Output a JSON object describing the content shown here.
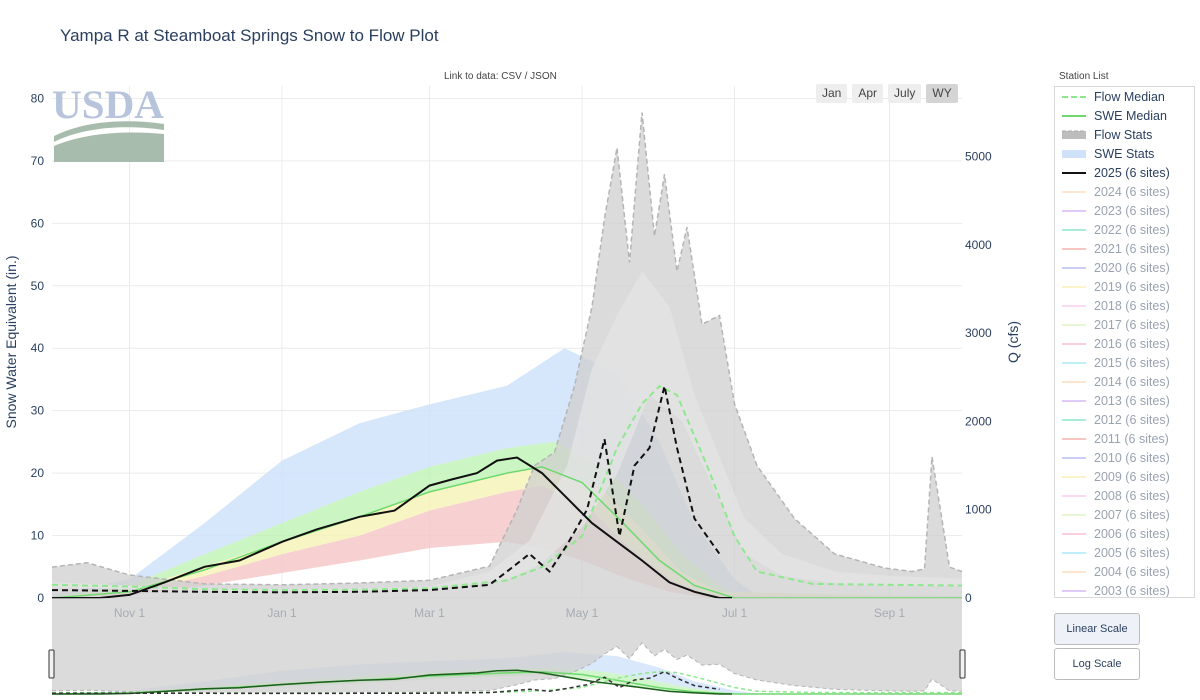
{
  "page": {
    "title": "Yampa R at Steamboat Springs Snow to Flow Plot",
    "data_link": "Link to data: CSV / JSON",
    "range_buttons": [
      "Jan",
      "Apr",
      "July",
      "WY"
    ],
    "active_range": "WY",
    "station_list_title": "Station List",
    "scale_buttons": [
      "Linear Scale",
      "Log Scale"
    ],
    "active_scale": "Linear Scale"
  },
  "colors": {
    "swe_stats_outer": "#cfe2fa",
    "swe_stats_green": "#bff2b5",
    "swe_stats_yellow": "#f6f3b8",
    "swe_stats_red": "#f6c9ca",
    "flow_stats_outer": "#cfcfcf",
    "flow_stats_inner": "#e6e6e6",
    "swe_median": "#6fd96f",
    "flow_median": "#8ee88e",
    "current_year": "#111111"
  },
  "legend": [
    {
      "label": "Flow Median",
      "kind": "dash",
      "color": "#8ee88e",
      "active": true
    },
    {
      "label": "SWE Median",
      "kind": "line",
      "color": "#6fd96f",
      "active": true
    },
    {
      "label": "Flow Stats",
      "kind": "dashfill",
      "color": "#bdbdbd",
      "active": true
    },
    {
      "label": "SWE Stats",
      "kind": "fill",
      "color": "#cfe2fa",
      "active": true
    },
    {
      "label": "2025 (6 sites)",
      "kind": "line",
      "color": "#111111",
      "active": true
    },
    {
      "label": "2024 (6 sites)",
      "kind": "line",
      "color": "#f5c28e",
      "active": false
    },
    {
      "label": "2023 (6 sites)",
      "kind": "line",
      "color": "#b47ef0",
      "active": false
    },
    {
      "label": "2022 (6 sites)",
      "kind": "line",
      "color": "#2ecf9a",
      "active": false
    },
    {
      "label": "2021 (6 sites)",
      "kind": "line",
      "color": "#f0776a",
      "active": false
    },
    {
      "label": "2020 (6 sites)",
      "kind": "line",
      "color": "#7f86e6",
      "active": false
    },
    {
      "label": "2019 (6 sites)",
      "kind": "line",
      "color": "#f7e27a",
      "active": false
    },
    {
      "label": "2018 (6 sites)",
      "kind": "line",
      "color": "#f2a6e8",
      "active": false
    },
    {
      "label": "2017 (6 sites)",
      "kind": "line",
      "color": "#c8ec9a",
      "active": false
    },
    {
      "label": "2016 (6 sites)",
      "kind": "line",
      "color": "#f28aa8",
      "active": false
    },
    {
      "label": "2015 (6 sites)",
      "kind": "line",
      "color": "#62dcf0",
      "active": false
    },
    {
      "label": "2014 (6 sites)",
      "kind": "line",
      "color": "#f5c28e",
      "active": false
    },
    {
      "label": "2013 (6 sites)",
      "kind": "line",
      "color": "#b47ef0",
      "active": false
    },
    {
      "label": "2012 (6 sites)",
      "kind": "line",
      "color": "#2ecf9a",
      "active": false
    },
    {
      "label": "2011 (6 sites)",
      "kind": "line",
      "color": "#f0776a",
      "active": false
    },
    {
      "label": "2010 (6 sites)",
      "kind": "line",
      "color": "#7f86e6",
      "active": false
    },
    {
      "label": "2009 (6 sites)",
      "kind": "line",
      "color": "#f7e27a",
      "active": false
    },
    {
      "label": "2008 (6 sites)",
      "kind": "line",
      "color": "#f2a6e8",
      "active": false
    },
    {
      "label": "2007 (6 sites)",
      "kind": "line",
      "color": "#c8ec9a",
      "active": false
    },
    {
      "label": "2006 (6 sites)",
      "kind": "line",
      "color": "#f28aa8",
      "active": false
    },
    {
      "label": "2005 (6 sites)",
      "kind": "line",
      "color": "#62dcf0",
      "active": false
    },
    {
      "label": "2004 (6 sites)",
      "kind": "line",
      "color": "#f5c28e",
      "active": false
    },
    {
      "label": "2003 (6 sites)",
      "kind": "line",
      "color": "#b47ef0",
      "active": false
    }
  ],
  "chart_data": {
    "type": "area",
    "ylabel": "Snow Water Equivalent (in.)",
    "y2label": "Q (cfs)",
    "ylim": [
      0,
      82
    ],
    "y2lim": [
      0,
      5800
    ],
    "yticks": [
      0,
      10,
      20,
      30,
      40,
      50,
      60,
      70,
      80
    ],
    "y2ticks": [
      0,
      1000,
      2000,
      3000,
      4000,
      5000
    ],
    "x_range": [
      "2024-10-01",
      "2025-09-30"
    ],
    "x_ticks": [
      {
        "date": "2024-11-01",
        "label": "Nov 1"
      },
      {
        "date": "2025-01-01",
        "label": "Jan 1"
      },
      {
        "date": "2025-03-01",
        "label": "Mar 1"
      },
      {
        "date": "2025-05-01",
        "label": "May 1"
      },
      {
        "date": "2025-07-01",
        "label": "Jul 1"
      },
      {
        "date": "2025-09-01",
        "label": "Sep 1"
      }
    ],
    "grid": true,
    "swe_stats_bands": [
      {
        "name": "max",
        "x": [
          "2024-10-01",
          "2024-11-01",
          "2024-12-01",
          "2025-01-01",
          "2025-02-01",
          "2025-03-01",
          "2025-04-01",
          "2025-04-24",
          "2025-05-15",
          "2025-06-01",
          "2025-06-15",
          "2025-07-01",
          "2025-07-10",
          "2025-09-30"
        ],
        "y": [
          0.5,
          3,
          12,
          22,
          28,
          31,
          34,
          40,
          36,
          25,
          12,
          3,
          0.5,
          0.3
        ]
      },
      {
        "name": "p90",
        "x": [
          "2024-10-01",
          "2024-11-01",
          "2024-12-01",
          "2025-01-01",
          "2025-02-01",
          "2025-03-01",
          "2025-04-01",
          "2025-04-20",
          "2025-05-10",
          "2025-05-25",
          "2025-06-10",
          "2025-06-25",
          "2025-07-01",
          "2025-09-30"
        ],
        "y": [
          0.3,
          2,
          7,
          12,
          17,
          21,
          24,
          25,
          21,
          15,
          7,
          2,
          0.5,
          0.2
        ]
      },
      {
        "name": "p70",
        "x": [
          "2024-10-01",
          "2024-11-01",
          "2024-12-01",
          "2025-01-01",
          "2025-02-01",
          "2025-03-01",
          "2025-04-01",
          "2025-04-15",
          "2025-05-10",
          "2025-05-25",
          "2025-06-10",
          "2025-06-25",
          "2025-09-30"
        ],
        "y": [
          0.2,
          1.3,
          5,
          9,
          13,
          17,
          20,
          21,
          17,
          11,
          4,
          1,
          0.1
        ]
      },
      {
        "name": "p50",
        "x": [
          "2024-10-01",
          "2024-11-01",
          "2024-12-01",
          "2025-01-01",
          "2025-02-01",
          "2025-03-01",
          "2025-04-01",
          "2025-04-15",
          "2025-05-05",
          "2025-05-20",
          "2025-06-05",
          "2025-06-20",
          "2025-09-30"
        ],
        "y": [
          0.1,
          0.9,
          3.5,
          7,
          10,
          14,
          17,
          18,
          14,
          8,
          3,
          0.5,
          0
        ]
      },
      {
        "name": "p30",
        "x": [
          "2024-10-01",
          "2024-11-01",
          "2024-12-01",
          "2025-01-01",
          "2025-02-01",
          "2025-03-01",
          "2025-04-01",
          "2025-04-15",
          "2025-05-01",
          "2025-05-20",
          "2025-06-05",
          "2025-06-20",
          "2025-09-30"
        ],
        "y": [
          0,
          0.4,
          2,
          4,
          6,
          8,
          9,
          8,
          6,
          3,
          1,
          0,
          0
        ]
      }
    ],
    "flow_stats_bands": [
      {
        "name": "max",
        "x": [
          "2024-10-01",
          "2024-10-15",
          "2024-11-01",
          "2024-12-01",
          "2025-01-01",
          "2025-02-01",
          "2025-03-01",
          "2025-03-25",
          "2025-04-05",
          "2025-04-12",
          "2025-04-20",
          "2025-04-28",
          "2025-05-05",
          "2025-05-10",
          "2025-05-15",
          "2025-05-20",
          "2025-05-25",
          "2025-05-30",
          "2025-06-03",
          "2025-06-08",
          "2025-06-12",
          "2025-06-18",
          "2025-06-25",
          "2025-07-01",
          "2025-07-10",
          "2025-07-25",
          "2025-08-10",
          "2025-08-30",
          "2025-09-10",
          "2025-09-15",
          "2025-09-18",
          "2025-09-25",
          "2025-09-30"
        ],
        "y": [
          350,
          400,
          260,
          160,
          150,
          170,
          200,
          360,
          1000,
          1500,
          1650,
          2400,
          3300,
          4300,
          5100,
          3800,
          5500,
          4100,
          4800,
          3700,
          4200,
          3100,
          3200,
          2200,
          1500,
          900,
          500,
          340,
          300,
          330,
          1600,
          350,
          300
        ]
      },
      {
        "name": "p90",
        "x": [
          "2024-10-01",
          "2024-11-01",
          "2024-12-01",
          "2025-01-01",
          "2025-02-01",
          "2025-03-01",
          "2025-03-25",
          "2025-04-10",
          "2025-04-25",
          "2025-05-05",
          "2025-05-15",
          "2025-05-25",
          "2025-06-05",
          "2025-06-15",
          "2025-06-25",
          "2025-07-05",
          "2025-07-20",
          "2025-08-10",
          "2025-09-01",
          "2025-09-30"
        ],
        "y": [
          180,
          140,
          110,
          100,
          110,
          130,
          300,
          650,
          1500,
          2600,
          3200,
          3700,
          3300,
          2300,
          1600,
          900,
          500,
          300,
          250,
          220
        ]
      },
      {
        "name": "p50",
        "x": [
          "2024-10-01",
          "2024-11-01",
          "2024-12-01",
          "2025-01-01",
          "2025-02-01",
          "2025-03-01",
          "2025-04-01",
          "2025-04-15",
          "2025-05-01",
          "2025-05-15",
          "2025-05-28",
          "2025-06-10",
          "2025-06-25",
          "2025-07-05",
          "2025-07-20",
          "2025-08-15",
          "2025-09-30"
        ],
        "y": [
          120,
          100,
          80,
          75,
          80,
          100,
          200,
          400,
          800,
          1400,
          2300,
          2000,
          1100,
          500,
          250,
          150,
          130
        ]
      }
    ],
    "series": [
      {
        "name": "SWE Median",
        "axis": "y",
        "x": [
          "2024-10-01",
          "2024-11-01",
          "2024-12-01",
          "2025-01-01",
          "2025-02-01",
          "2025-03-01",
          "2025-04-01",
          "2025-04-15",
          "2025-05-01",
          "2025-05-15",
          "2025-06-01",
          "2025-06-15",
          "2025-07-01",
          "2025-09-30"
        ],
        "y": [
          0,
          1,
          4.5,
          9,
          13,
          17,
          20,
          21,
          18.5,
          13,
          6,
          2,
          0,
          0
        ]
      },
      {
        "name": "Flow Median",
        "axis": "y2",
        "x": [
          "2024-10-01",
          "2024-11-01",
          "2024-12-01",
          "2025-01-01",
          "2025-02-01",
          "2025-03-01",
          "2025-04-01",
          "2025-04-15",
          "2025-05-01",
          "2025-05-15",
          "2025-05-25",
          "2025-06-01",
          "2025-06-08",
          "2025-06-20",
          "2025-07-01",
          "2025-07-10",
          "2025-08-01",
          "2025-09-30"
        ],
        "y": [
          150,
          130,
          100,
          90,
          95,
          110,
          200,
          350,
          700,
          1700,
          2200,
          2400,
          2300,
          1500,
          700,
          300,
          160,
          140
        ]
      },
      {
        "name": "2025 (6 sites)",
        "axis": "y",
        "x": [
          "2024-10-01",
          "2024-10-20",
          "2024-11-01",
          "2024-11-15",
          "2024-12-01",
          "2024-12-15",
          "2025-01-01",
          "2025-01-15",
          "2025-02-01",
          "2025-02-15",
          "2025-03-01",
          "2025-03-10",
          "2025-03-20",
          "2025-03-28",
          "2025-04-05",
          "2025-04-15",
          "2025-04-25",
          "2025-05-05",
          "2025-05-15",
          "2025-05-25",
          "2025-06-05",
          "2025-06-15",
          "2025-06-25",
          "2025-06-30"
        ],
        "y": [
          0,
          0,
          0.5,
          2.5,
          5,
          6,
          9,
          11,
          13,
          14,
          18,
          19,
          20,
          22,
          22.5,
          20,
          16,
          12,
          9,
          6,
          2.5,
          1,
          0,
          0
        ]
      },
      {
        "name": "2025 Flow",
        "axis": "y2",
        "x": [
          "2024-10-01",
          "2024-11-01",
          "2024-12-01",
          "2025-01-01",
          "2025-02-01",
          "2025-03-01",
          "2025-03-25",
          "2025-04-01",
          "2025-04-10",
          "2025-04-18",
          "2025-04-25",
          "2025-05-03",
          "2025-05-10",
          "2025-05-16",
          "2025-05-22",
          "2025-05-28",
          "2025-06-03",
          "2025-06-08",
          "2025-06-15",
          "2025-06-25"
        ],
        "y": [
          90,
          80,
          70,
          65,
          70,
          90,
          150,
          300,
          500,
          300,
          600,
          1000,
          1800,
          700,
          1500,
          1700,
          2400,
          1700,
          900,
          500
        ]
      }
    ]
  }
}
